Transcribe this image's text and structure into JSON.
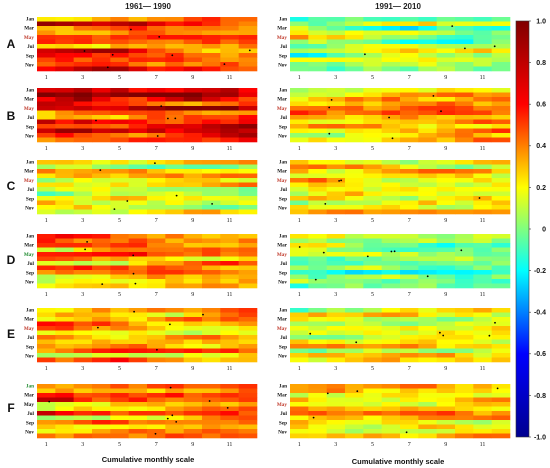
{
  "chart_data": {
    "type": "heatmap",
    "title": "",
    "column_titles": [
      "1961— 1990",
      "1991— 2010"
    ],
    "row_letters": [
      "A",
      "B",
      "C",
      "D",
      "E",
      "F"
    ],
    "month_labels": [
      "Jan",
      "Mar",
      "May",
      "Jul",
      "Sep",
      "Nov"
    ],
    "month_colors": [
      "#111111",
      "#111111",
      "#c0392b",
      "#111111",
      "#111111",
      "#111111"
    ],
    "month_colors_alt": {
      "C_1961": [
        "#111111",
        "#111111",
        "#c0392b",
        "#111111",
        "#111111",
        "#111111"
      ],
      "D_1961": [
        "#111111",
        "#111111",
        "#1e8a2e",
        "#111111",
        "#111111",
        "#111111"
      ],
      "F_1961": [
        "#1e8a2e",
        "#111111",
        "#111111",
        "#111111",
        "#111111",
        "#111111"
      ]
    },
    "x_tick_labels": [
      "1",
      "3",
      "5",
      "7",
      "9",
      "11"
    ],
    "xlabel": "Cumulative monthly scale",
    "colorbar": {
      "min": -1.0,
      "max": 1.0,
      "ticks": [
        "1.0",
        "0.8",
        "0.6",
        "0.4",
        "0.2",
        "0",
        "-0.2",
        "-0.4",
        "-0.6",
        "-0.8",
        "-1.0"
      ],
      "colors": [
        "#00008f",
        "#0000ff",
        "#00ffff",
        "#ffff00",
        "#ff0000",
        "#800000"
      ]
    },
    "panel_means": {
      "A": [
        0.55,
        0.05
      ],
      "B": [
        0.72,
        0.42
      ],
      "C": [
        0.25,
        0.28
      ],
      "D": [
        0.45,
        -0.05
      ],
      "E": [
        0.42,
        0.18
      ],
      "F": [
        0.5,
        0.32
      ]
    }
  }
}
